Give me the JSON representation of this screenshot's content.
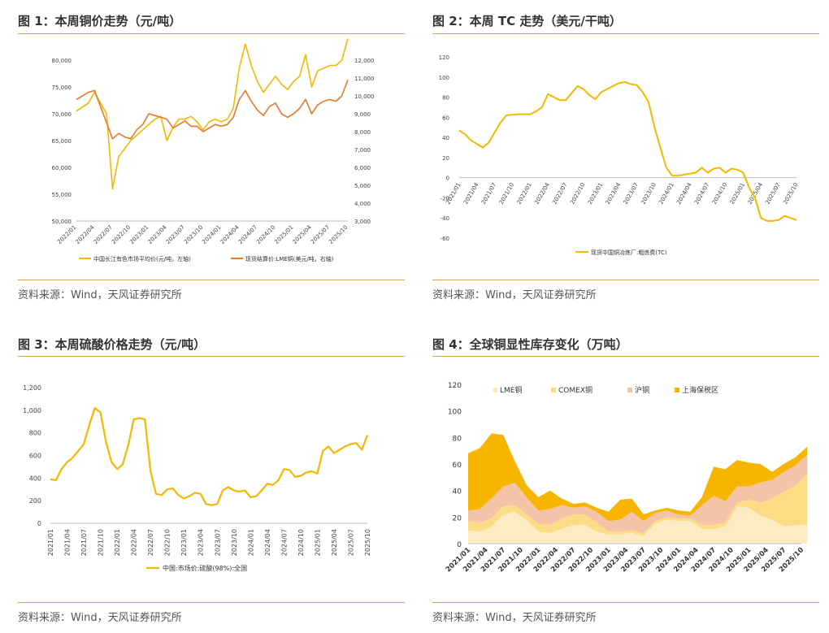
{
  "panels": [
    {
      "title": "图 1：本周铜价走势（元/吨）",
      "source": "资料来源：Wind，天风证券研究所"
    },
    {
      "title": "图 2：本周 TC 走势（美元/干吨）",
      "source": "资料来源：Wind，天风证券研究所"
    },
    {
      "title": "图 3：本周硫酸价格走势（元/吨）",
      "source": "资料来源：Wind，天风证券研究所"
    },
    {
      "title": "图 4：全球铜显性库存变化（万吨）",
      "source": "资料来源：Wind，天风证券研究所"
    }
  ],
  "chart_data": [
    {
      "type": "line",
      "x_ticks": [
        "2022/01",
        "2022/04",
        "2022/07",
        "2022/10",
        "2023/01",
        "2023/04",
        "2023/07",
        "2023/10",
        "2024/01",
        "2024/04",
        "2024/07",
        "2024/10",
        "2025/01",
        "2025/04",
        "2025/07",
        "2025/10"
      ],
      "y_left": {
        "ticks": [
          "50,000",
          "55,000",
          "60,000",
          "65,000",
          "70,000",
          "75,000",
          "80,000"
        ],
        "range": [
          50000,
          80000
        ]
      },
      "y_right": {
        "ticks": [
          "3,000",
          "4,000",
          "5,000",
          "6,000",
          "7,000",
          "8,000",
          "9,000",
          "10,000",
          "11,000",
          "12,000"
        ],
        "range": [
          3000,
          12000
        ]
      },
      "series": [
        {
          "name": "中国长江有色市场平均价(元/吨，左轴)",
          "axis": "left",
          "color": "#f5b800",
          "x": [
            "2022/01",
            "2022/03",
            "2022/04",
            "2022/05",
            "2022/06",
            "2022/07",
            "2022/08",
            "2022/09",
            "2022/10",
            "2022/11",
            "2022/12",
            "2023/01",
            "2023/02",
            "2023/03",
            "2023/04",
            "2023/05",
            "2023/06",
            "2023/07",
            "2023/08",
            "2023/09",
            "2023/10",
            "2023/11",
            "2023/12",
            "2024/01",
            "2024/02",
            "2024/03",
            "2024/04",
            "2024/05",
            "2024/06",
            "2024/07",
            "2024/08",
            "2024/09",
            "2024/10",
            "2024/11",
            "2024/12",
            "2025/01",
            "2025/02",
            "2025/03",
            "2025/04",
            "2025/05",
            "2025/06",
            "2025/07",
            "2025/08",
            "2025/09",
            "2025/10"
          ],
          "y": [
            70500,
            72000,
            74000,
            72000,
            70000,
            56000,
            62000,
            63500,
            65000,
            66000,
            67000,
            68000,
            69000,
            69500,
            65000,
            67500,
            69000,
            69000,
            69500,
            68500,
            67000,
            68500,
            69000,
            68500,
            69000,
            71000,
            78500,
            83000,
            79000,
            76000,
            74000,
            75500,
            77000,
            75500,
            74500,
            76000,
            77000,
            81000,
            75000,
            78000,
            78500,
            79000,
            79000,
            80000,
            84000
          ]
        },
        {
          "name": "现货结算价:LME铜(美元/吨，右轴)",
          "axis": "right",
          "color": "#e8782a",
          "x": [
            "2022/01",
            "2022/03",
            "2022/04",
            "2022/05",
            "2022/06",
            "2022/07",
            "2022/08",
            "2022/09",
            "2022/10",
            "2022/11",
            "2022/12",
            "2023/01",
            "2023/02",
            "2023/03",
            "2023/04",
            "2023/05",
            "2023/06",
            "2023/07",
            "2023/08",
            "2023/09",
            "2023/10",
            "2023/11",
            "2023/12",
            "2024/01",
            "2024/02",
            "2024/03",
            "2024/04",
            "2024/05",
            "2024/06",
            "2024/07",
            "2024/08",
            "2024/09",
            "2024/10",
            "2024/11",
            "2024/12",
            "2025/01",
            "2025/02",
            "2025/03",
            "2025/04",
            "2025/05",
            "2025/06",
            "2025/07",
            "2025/08",
            "2025/09",
            "2025/10"
          ],
          "y": [
            9800,
            10200,
            10300,
            9400,
            8500,
            7600,
            7900,
            7700,
            7600,
            8100,
            8400,
            9000,
            8900,
            8800,
            8700,
            8200,
            8400,
            8600,
            8300,
            8300,
            8000,
            8200,
            8400,
            8300,
            8400,
            8800,
            9800,
            10300,
            9700,
            9200,
            8900,
            9400,
            9600,
            9000,
            8800,
            9000,
            9300,
            9800,
            9000,
            9500,
            9700,
            9800,
            9700,
            10000,
            10900
          ]
        }
      ]
    },
    {
      "type": "line",
      "x_ticks": [
        "2021/01",
        "2021/04",
        "2021/07",
        "2021/10",
        "2022/01",
        "2022/04",
        "2022/07",
        "2022/10",
        "2023/01",
        "2023/04",
        "2023/07",
        "2023/10",
        "2024/01",
        "2024/04",
        "2024/07",
        "2024/10",
        "2025/01",
        "2025/04",
        "2025/07",
        "2025/10"
      ],
      "y_ticks": [
        "-60",
        "-40",
        "-20",
        "0",
        "20",
        "40",
        "60",
        "80",
        "100",
        "120"
      ],
      "ylim": [
        -60,
        120
      ],
      "series": [
        {
          "name": "现货中国铜冶炼厂:粗炼费(TC)",
          "color": "#f5b800",
          "x": [
            "2021/01",
            "2021/02",
            "2021/03",
            "2021/05",
            "2021/06",
            "2021/08",
            "2021/09",
            "2021/11",
            "2022/01",
            "2022/02",
            "2022/03",
            "2022/04",
            "2022/06",
            "2022/07",
            "2022/08",
            "2022/09",
            "2022/10",
            "2022/11",
            "2022/12",
            "2023/01",
            "2023/02",
            "2023/04",
            "2023/05",
            "2023/06",
            "2023/07",
            "2023/08",
            "2023/09",
            "2023/10",
            "2023/11",
            "2023/12",
            "2024/01",
            "2024/02",
            "2024/03",
            "2024/05",
            "2024/06",
            "2024/07",
            "2024/08",
            "2024/09",
            "2024/10",
            "2024/11",
            "2024/12",
            "2025/01",
            "2025/02",
            "2025/03",
            "2025/04",
            "2025/05",
            "2025/06",
            "2025/07",
            "2025/08",
            "2025/09",
            "2025/10"
          ],
          "y": [
            47,
            43,
            37,
            30,
            35,
            55,
            62,
            63,
            63,
            66,
            70,
            83,
            77,
            77,
            84,
            91,
            88,
            82,
            78,
            85,
            88,
            94,
            95,
            93,
            92,
            85,
            75,
            50,
            30,
            10,
            2,
            2,
            3,
            5,
            10,
            5,
            9,
            10,
            5,
            9,
            8,
            5,
            -10,
            -20,
            -40,
            -43,
            -43,
            -42,
            -38,
            -40,
            -42
          ]
        }
      ]
    },
    {
      "type": "line",
      "x_ticks": [
        "2021/01",
        "2021/04",
        "2021/07",
        "2021/10",
        "2022/01",
        "2022/04",
        "2022/07",
        "2022/10",
        "2023/01",
        "2023/04",
        "2023/07",
        "2023/10",
        "2024/01",
        "2024/04",
        "2024/07",
        "2024/10",
        "2025/01",
        "2025/04",
        "2025/07",
        "2025/10"
      ],
      "y_ticks": [
        "0",
        "200",
        "400",
        "600",
        "800",
        "1,000",
        "1,200"
      ],
      "ylim": [
        0,
        1200
      ],
      "series": [
        {
          "name": "中国:市场价:硫酸(98%):全国",
          "color": "#f5b800",
          "x": [
            "2021/01",
            "2021/02",
            "2021/03",
            "2021/04",
            "2021/05",
            "2021/06",
            "2021/07",
            "2021/08",
            "2021/09",
            "2021/10",
            "2021/11",
            "2021/12",
            "2022/01",
            "2022/02",
            "2022/03",
            "2022/04",
            "2022/05",
            "2022/06",
            "2022/07",
            "2022/08",
            "2022/09",
            "2022/10",
            "2022/11",
            "2022/12",
            "2023/01",
            "2023/02",
            "2023/03",
            "2023/04",
            "2023/05",
            "2023/06",
            "2023/07",
            "2023/08",
            "2023/09",
            "2023/10",
            "2023/11",
            "2023/12",
            "2024/01",
            "2024/02",
            "2024/03",
            "2024/04",
            "2024/05",
            "2024/06",
            "2024/07",
            "2024/08",
            "2024/09",
            "2024/10",
            "2024/11",
            "2024/12",
            "2025/01",
            "2025/02",
            "2025/03",
            "2025/04",
            "2025/05",
            "2025/06",
            "2025/07",
            "2025/08",
            "2025/09",
            "2025/10"
          ],
          "y": [
            390,
            380,
            480,
            540,
            580,
            640,
            700,
            870,
            1020,
            980,
            720,
            540,
            480,
            520,
            690,
            920,
            930,
            920,
            460,
            260,
            250,
            300,
            310,
            250,
            220,
            240,
            270,
            260,
            170,
            160,
            170,
            290,
            320,
            290,
            280,
            290,
            230,
            240,
            290,
            350,
            340,
            380,
            480,
            470,
            410,
            420,
            450,
            460,
            440,
            640,
            680,
            620,
            650,
            680,
            700,
            710,
            650,
            780
          ]
        }
      ]
    },
    {
      "type": "area",
      "stacked": true,
      "x_ticks": [
        "2021/01",
        "2021/04",
        "2021/07",
        "2021/10",
        "2022/01",
        "2022/04",
        "2022/07",
        "2022/10",
        "2023/01",
        "2023/04",
        "2023/07",
        "2023/10",
        "2024/01",
        "2024/04",
        "2024/07",
        "2024/10",
        "2025/01",
        "2025/04",
        "2025/07",
        "2025/10"
      ],
      "y_ticks": [
        "0",
        "20",
        "40",
        "60",
        "80",
        "100",
        "120"
      ],
      "ylim": [
        0,
        120
      ],
      "legend_position": "top",
      "x": [
        "2021/01",
        "2021/03",
        "2021/05",
        "2021/07",
        "2021/09",
        "2021/11",
        "2022/01",
        "2022/03",
        "2022/05",
        "2022/07",
        "2022/09",
        "2022/11",
        "2023/01",
        "2023/03",
        "2023/05",
        "2023/07",
        "2023/09",
        "2023/11",
        "2024/01",
        "2024/03",
        "2024/05",
        "2024/07",
        "2024/09",
        "2024/11",
        "2025/01",
        "2025/03",
        "2025/05",
        "2025/07",
        "2025/09",
        "2025/11"
      ],
      "series": [
        {
          "name": "LME铜",
          "color": "#fdebc4",
          "values": [
            10,
            9,
            13,
            22,
            24,
            18,
            9,
            8,
            11,
            14,
            14,
            9,
            7,
            7,
            8,
            6,
            15,
            18,
            17,
            17,
            11,
            11,
            13,
            28,
            27,
            21,
            18,
            13,
            14,
            14
          ]
        },
        {
          "name": "COMEX铜",
          "color": "#fddc86",
          "values": [
            7,
            7,
            6,
            6,
            5,
            4,
            6,
            6,
            8,
            8,
            8,
            7,
            2,
            2,
            2,
            2,
            2,
            2,
            2,
            2,
            3,
            3,
            3,
            3,
            6,
            10,
            16,
            26,
            30,
            38
          ]
        },
        {
          "name": "沪铜",
          "color": "#f5c4a8",
          "values": [
            8,
            10,
            15,
            15,
            17,
            13,
            10,
            12,
            10,
            5,
            6,
            8,
            8,
            9,
            14,
            9,
            6,
            5,
            3,
            2,
            15,
            22,
            16,
            12,
            10,
            15,
            14,
            15,
            15,
            15
          ]
        },
        {
          "name": "上海保税区",
          "color": "#f7b500",
          "values": [
            43,
            46,
            49,
            39,
            16,
            9,
            10,
            14,
            5,
            3,
            3,
            3,
            7,
            15,
            10,
            5,
            2,
            2,
            3,
            3,
            6,
            22,
            24,
            20,
            18,
            14,
            6,
            6,
            6,
            6
          ]
        }
      ]
    }
  ]
}
